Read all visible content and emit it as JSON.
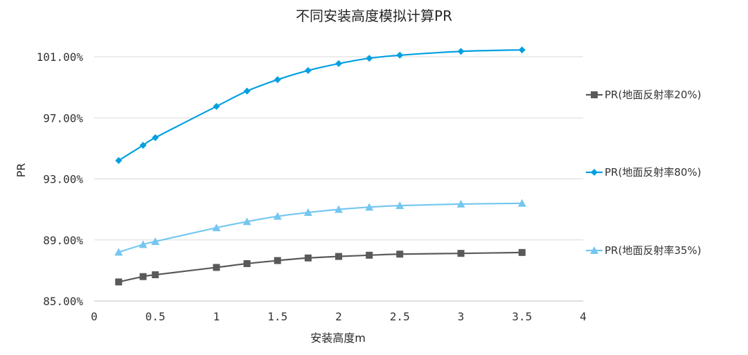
{
  "chart_data": {
    "type": "line",
    "title": "不同安装高度模拟计算PR",
    "xlabel": "安装高度m",
    "ylabel": "PR",
    "xlim": [
      0,
      4
    ],
    "ylim": [
      85,
      103
    ],
    "x_ticks": [
      "0",
      "0.5",
      "1",
      "1.5",
      "2",
      "2.5",
      "3",
      "3.5",
      "4"
    ],
    "y_ticks": [
      "85.00%",
      "89.00%",
      "93.00%",
      "97.00%",
      "101.00%"
    ],
    "grid": true,
    "legend_position": "right",
    "x": [
      0.2,
      0.4,
      0.5,
      1.0,
      1.25,
      1.5,
      1.75,
      2.0,
      2.25,
      2.5,
      3.0,
      3.5
    ],
    "series": [
      {
        "name": "PR(地面反射率20%)",
        "color": "#595959",
        "marker": "square",
        "values": [
          86.25,
          86.6,
          86.72,
          87.2,
          87.45,
          87.65,
          87.82,
          87.92,
          88.0,
          88.07,
          88.12,
          88.18
        ]
      },
      {
        "name": "PR(地面反射率80%)",
        "color": "#00a0e0",
        "marker": "diamond",
        "values": [
          94.2,
          95.2,
          95.7,
          97.75,
          98.75,
          99.5,
          100.1,
          100.55,
          100.9,
          101.1,
          101.35,
          101.45
        ]
      },
      {
        "name": "PR(地面反射率35%)",
        "color": "#74c7f0",
        "marker": "triangle",
        "values": [
          88.2,
          88.7,
          88.9,
          89.8,
          90.2,
          90.55,
          90.8,
          91.0,
          91.15,
          91.25,
          91.35,
          91.4
        ]
      }
    ]
  }
}
